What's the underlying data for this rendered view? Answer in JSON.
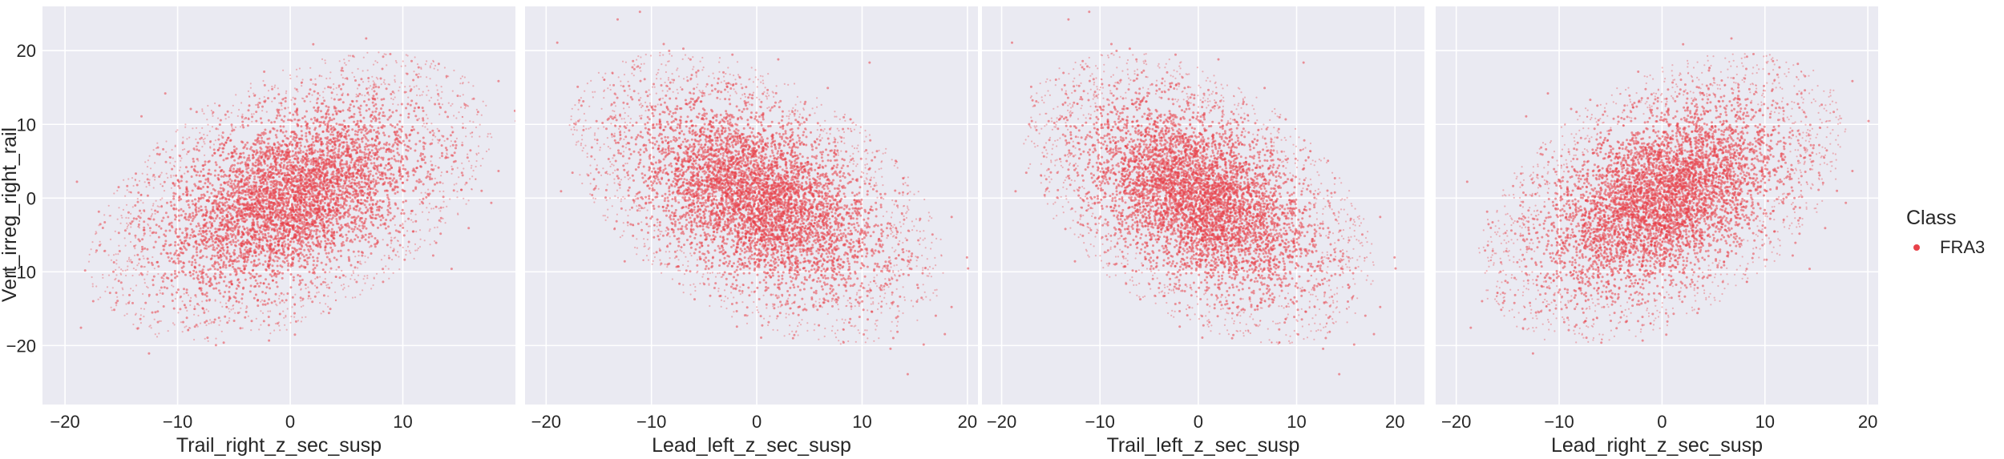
{
  "chart_data": {
    "type": "scatter",
    "layout": "facet-row",
    "shared_y": true,
    "ylabel": "Vert_irreg_right_rail",
    "ylim": [
      -28,
      26
    ],
    "yticks": [
      -20,
      -10,
      0,
      10,
      20
    ],
    "grid": true,
    "background_color": "#eaeaf2",
    "point_color": "#e8424a",
    "legend": {
      "title": "Class",
      "entries": [
        {
          "label": "FRA3",
          "color": "#e8424a"
        }
      ],
      "placement": "right"
    },
    "panels": [
      {
        "xlabel": "Trail_right_z_sec_susp",
        "xlim": [
          -22,
          20
        ],
        "xticks": [
          -20,
          -10,
          0,
          10
        ],
        "cloud": {
          "center_x": 0,
          "center_y": 0,
          "sd_x": 5.6,
          "sd_y": 6.2,
          "correlation": 0.45
        }
      },
      {
        "xlabel": "Lead_left_z_sec_susp",
        "xlim": [
          -22,
          21
        ],
        "xticks": [
          -20,
          -10,
          0,
          10,
          20
        ],
        "cloud": {
          "center_x": 0,
          "center_y": 0,
          "sd_x": 5.6,
          "sd_y": 6.2,
          "correlation": -0.45
        }
      },
      {
        "xlabel": "Trail_left_z_sec_susp",
        "xlim": [
          -22,
          23
        ],
        "xticks": [
          -20,
          -10,
          0,
          10,
          20
        ],
        "cloud": {
          "center_x": 0,
          "center_y": 0,
          "sd_x": 5.6,
          "sd_y": 6.2,
          "correlation": -0.45
        }
      },
      {
        "xlabel": "Lead_right_z_sec_susp",
        "xlim": [
          -22,
          21
        ],
        "xticks": [
          -20,
          -10,
          0,
          10,
          20
        ],
        "cloud": {
          "center_x": 0,
          "center_y": 0,
          "sd_x": 5.6,
          "sd_y": 6.2,
          "correlation": 0.45
        }
      }
    ]
  }
}
